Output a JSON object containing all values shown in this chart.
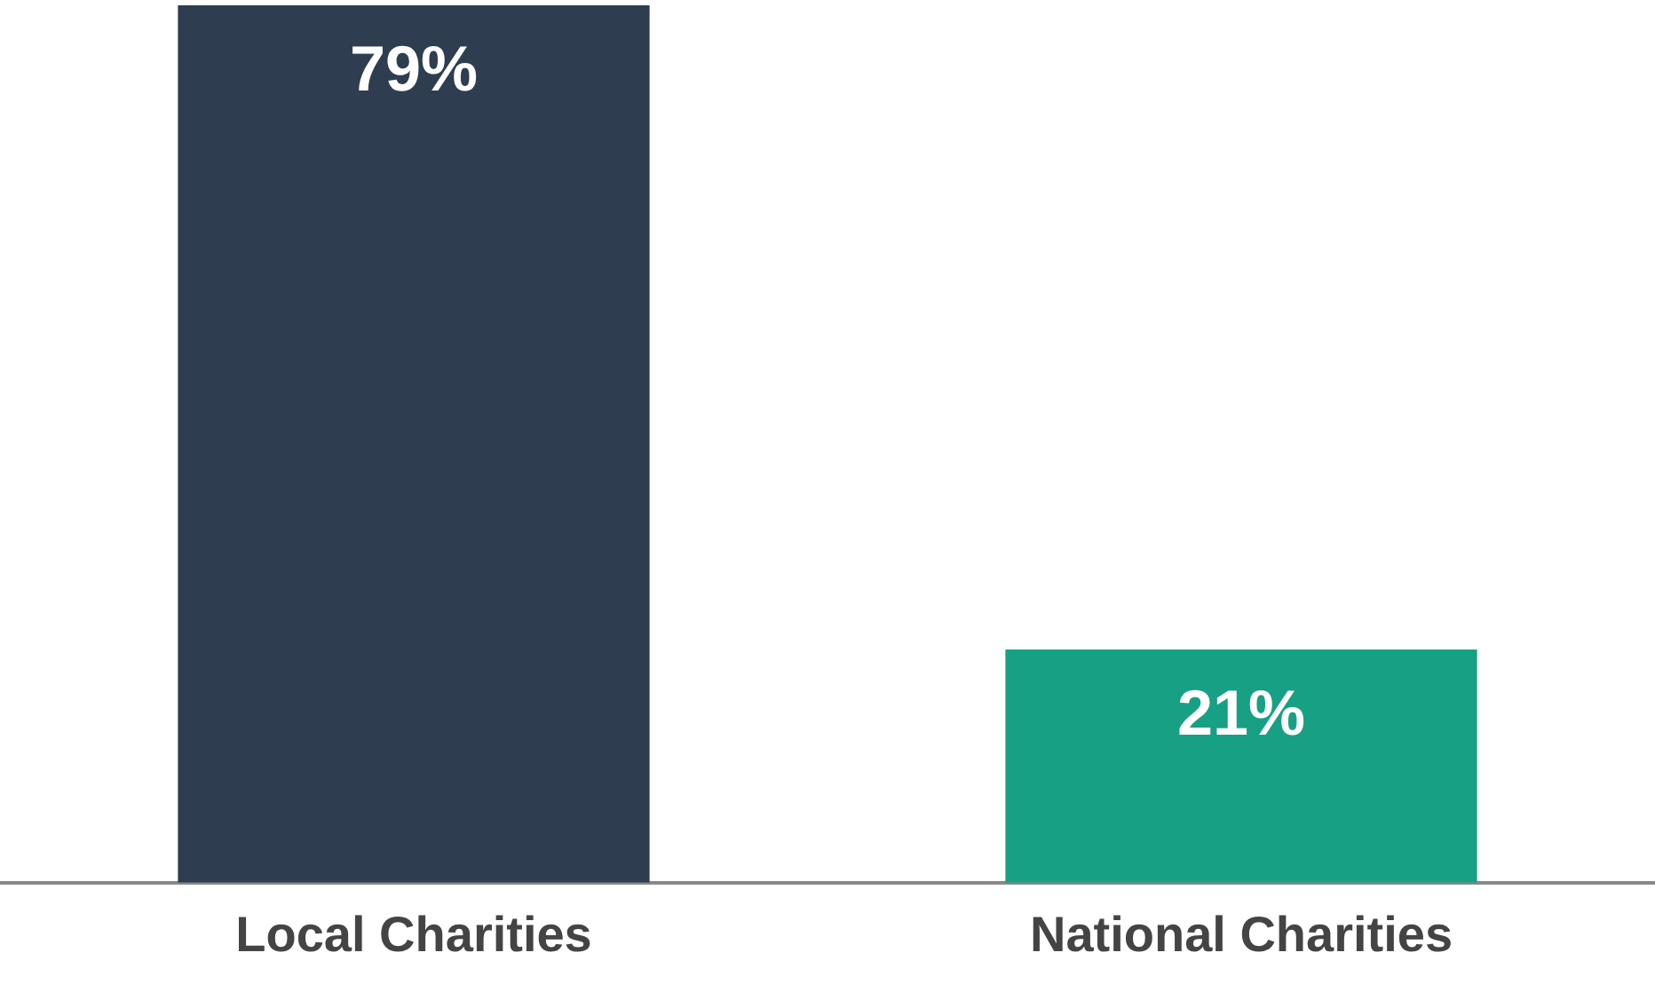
{
  "chart_data": {
    "type": "bar",
    "categories": [
      "Local Charities",
      "National Charities"
    ],
    "values": [
      79,
      21
    ],
    "colors": [
      "#2e3e50",
      "#18a085"
    ],
    "value_labels": [
      "79%",
      "21%"
    ],
    "ylim": [
      0,
      79
    ],
    "tick_labels": "x",
    "grid": false,
    "legend": false
  }
}
